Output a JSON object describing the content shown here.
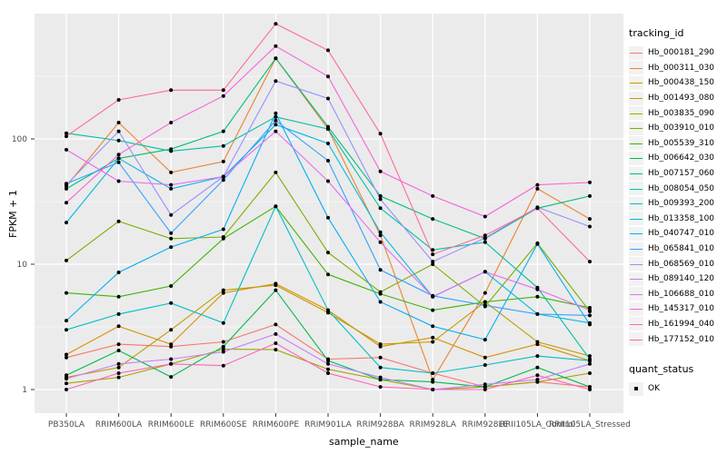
{
  "chart_data": {
    "type": "line",
    "xlabel": "sample_name",
    "ylabel": "FPKM + 1",
    "x_categories": [
      "PB350LA",
      "RRIM600LA",
      "RRIM600LE",
      "RRIM600SE",
      "RRIM600PE",
      "RRIM901LA",
      "RRIM928BA",
      "RRIM928LA",
      "RRIM928LE",
      "RRII105LA_Control",
      "RRII105LA_Stressed"
    ],
    "y_scale": "log10",
    "y_axis": {
      "tick_values": [
        1,
        10,
        100
      ],
      "tick_labels": [
        "1",
        "10",
        "100"
      ],
      "minor_values": [
        3.162,
        31.62,
        316.2
      ],
      "range": [
        0.65,
        1000
      ]
    },
    "grid": "on",
    "legend_position": "right",
    "legend_title": "tracking_id",
    "legend2_title": "quant_status",
    "legend2_items": [
      "OK"
    ],
    "panel_bg": "#EBEBEB",
    "grid_color": "#FFFFFF",
    "point_color": "#000000",
    "tick_label_color": "#4D4D4D",
    "series": [
      {
        "name": "Hb_000181_290",
        "color": "#F8766D",
        "values": [
          1.8,
          2.3,
          2.2,
          2.4,
          3.3,
          1.75,
          1.8,
          1.35,
          1.05,
          1.15,
          1.05
        ]
      },
      {
        "name": "Hb_000311_030",
        "color": "#EA8331",
        "values": [
          42,
          135,
          54,
          66,
          440,
          120,
          17,
          1.2,
          5.9,
          40,
          23
        ]
      },
      {
        "name": "Hb_000438_150",
        "color": "#D89000",
        "values": [
          1.9,
          3.2,
          2.3,
          5.9,
          7.0,
          4.3,
          2.2,
          2.6,
          1.8,
          2.3,
          1.7
        ]
      },
      {
        "name": "Hb_001493_080",
        "color": "#C09B00",
        "values": [
          1.25,
          1.5,
          3.0,
          6.2,
          6.8,
          4.1,
          2.3,
          2.4,
          5.0,
          2.4,
          1.85
        ]
      },
      {
        "name": "Hb_003835_090",
        "color": "#A3A500",
        "values": [
          1.12,
          1.25,
          1.6,
          2.1,
          2.08,
          1.45,
          1.2,
          1.0,
          1.05,
          1.15,
          1.35
        ]
      },
      {
        "name": "Hb_003910_010",
        "color": "#7CAE00",
        "values": [
          10.7,
          22,
          16,
          16.5,
          54,
          12.4,
          6.0,
          10,
          4.6,
          14.7,
          4.2
        ]
      },
      {
        "name": "Hb_005539_310",
        "color": "#39B600",
        "values": [
          5.9,
          5.5,
          6.7,
          16,
          29,
          8.3,
          5.8,
          4.3,
          5.0,
          5.5,
          4.5
        ]
      },
      {
        "name": "Hb_006642_030",
        "color": "#00BB4E",
        "values": [
          1.3,
          2.05,
          1.26,
          2.2,
          6.2,
          1.7,
          1.2,
          1.15,
          1.05,
          1.5,
          1.05
        ]
      },
      {
        "name": "Hb_007157_060",
        "color": "#00BF7D",
        "values": [
          40,
          70,
          83,
          115,
          440,
          125,
          35,
          23,
          16,
          28,
          35
        ]
      },
      {
        "name": "Hb_008054_050",
        "color": "#00C1A3",
        "values": [
          111,
          97,
          80,
          88,
          150,
          120,
          28,
          13,
          15,
          6.5,
          1.75
        ]
      },
      {
        "name": "Hb_009393_200",
        "color": "#00BFC4",
        "values": [
          3.0,
          4.0,
          4.9,
          3.4,
          29,
          4.3,
          1.5,
          1.35,
          1.57,
          1.85,
          1.7
        ]
      },
      {
        "name": "Hb_013358_100",
        "color": "#00BAE0",
        "values": [
          21.5,
          70,
          40,
          50,
          130,
          92,
          18,
          5.5,
          8.7,
          4.0,
          3.4
        ]
      },
      {
        "name": "Hb_040747_010",
        "color": "#00B0F6",
        "values": [
          3.55,
          8.6,
          13.7,
          19,
          160,
          23.5,
          5.0,
          3.2,
          2.5,
          14.5,
          3.3
        ]
      },
      {
        "name": "Hb_065841_010",
        "color": "#35A2FF",
        "values": [
          44,
          65,
          17.7,
          47,
          140,
          67,
          9.0,
          5.6,
          4.7,
          4.0,
          3.9
        ]
      },
      {
        "name": "Hb_068569_010",
        "color": "#9590FF",
        "values": [
          43,
          115,
          24.7,
          50,
          290,
          210,
          33,
          10.5,
          16.2,
          28.5,
          20
        ]
      },
      {
        "name": "Hb_089140_120",
        "color": "#C77CFF",
        "values": [
          1.22,
          1.6,
          1.75,
          2.0,
          2.77,
          1.6,
          1.25,
          1.0,
          1.1,
          1.2,
          1.6
        ]
      },
      {
        "name": "Hb_106688_010",
        "color": "#E76BF3",
        "values": [
          82,
          46,
          43,
          50,
          115,
          46,
          15,
          5.5,
          8.7,
          6.3,
          4.3
        ]
      },
      {
        "name": "Hb_145317_010",
        "color": "#FA62DB",
        "values": [
          31,
          75,
          135,
          220,
          550,
          315,
          55,
          35,
          24,
          43,
          45
        ]
      },
      {
        "name": "Hb_161994_040",
        "color": "#FF62BC",
        "values": [
          1.0,
          1.35,
          1.6,
          1.55,
          2.34,
          1.35,
          1.05,
          1.0,
          1.0,
          1.3,
          1.0
        ]
      },
      {
        "name": "Hb_177152_010",
        "color": "#FF6A98",
        "values": [
          105,
          205,
          245,
          245,
          830,
          510,
          110,
          12,
          17,
          28,
          10.5
        ]
      }
    ]
  }
}
